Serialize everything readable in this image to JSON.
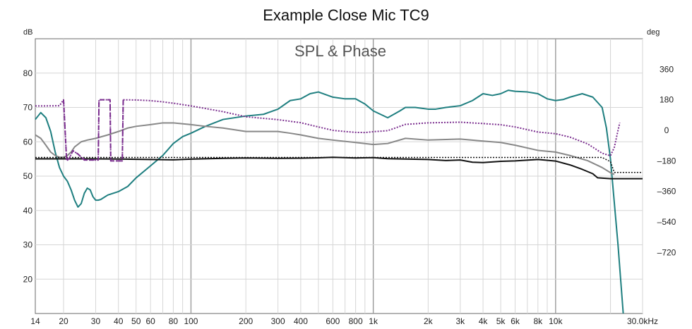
{
  "chart_data": {
    "type": "line",
    "title": "Example Close Mic TC9",
    "subtitle": "SPL & Phase",
    "y_left_unit": "dB",
    "y_right_unit": "deg",
    "x_scale": "log",
    "xlim": [
      14,
      30000
    ],
    "ylim_left": [
      10,
      90
    ],
    "ylim_right": [
      -1080,
      540
    ],
    "x_ticks": [
      {
        "v": 14,
        "label": "14"
      },
      {
        "v": 20,
        "label": "20"
      },
      {
        "v": 30,
        "label": "30"
      },
      {
        "v": 40,
        "label": "40"
      },
      {
        "v": 50,
        "label": "50"
      },
      {
        "v": 60,
        "label": "60"
      },
      {
        "v": 80,
        "label": "80"
      },
      {
        "v": 100,
        "label": "100"
      },
      {
        "v": 200,
        "label": "200"
      },
      {
        "v": 300,
        "label": "300"
      },
      {
        "v": 400,
        "label": "400"
      },
      {
        "v": 600,
        "label": "600"
      },
      {
        "v": 800,
        "label": "800"
      },
      {
        "v": 1000,
        "label": "1k"
      },
      {
        "v": 2000,
        "label": "2k"
      },
      {
        "v": 3000,
        "label": "3k"
      },
      {
        "v": 4000,
        "label": "4k"
      },
      {
        "v": 5000,
        "label": "5k"
      },
      {
        "v": 6000,
        "label": "6k"
      },
      {
        "v": 8000,
        "label": "8k"
      },
      {
        "v": 10000,
        "label": "10k"
      },
      {
        "v": 30000,
        "label": "30.0kHz"
      }
    ],
    "y_left_ticks": [
      {
        "v": 80,
        "label": "80"
      },
      {
        "v": 70,
        "label": "70"
      },
      {
        "v": 60,
        "label": "60"
      },
      {
        "v": 50,
        "label": "50"
      },
      {
        "v": 40,
        "label": "40"
      },
      {
        "v": 30,
        "label": "30"
      },
      {
        "v": 20,
        "label": "20"
      }
    ],
    "y_right_ticks": [
      {
        "v": 360,
        "label": "360"
      },
      {
        "v": 180,
        "label": "180"
      },
      {
        "v": 0,
        "label": "0"
      },
      {
        "v": -180,
        "label": "–180"
      },
      {
        "v": -360,
        "label": "–360"
      },
      {
        "v": -540,
        "label": "–540"
      },
      {
        "v": -720,
        "label": "–720"
      }
    ],
    "series": [
      {
        "color": "#1f7f80",
        "dash": "",
        "width": 2,
        "axis": "left",
        "points": [
          [
            14,
            66.5
          ],
          [
            15,
            68.5
          ],
          [
            16,
            67
          ],
          [
            17,
            63
          ],
          [
            18,
            57
          ],
          [
            19,
            52.5
          ],
          [
            20,
            50
          ],
          [
            21,
            48.5
          ],
          [
            22,
            46
          ],
          [
            23,
            43
          ],
          [
            24,
            41
          ],
          [
            25,
            42
          ],
          [
            26,
            45
          ],
          [
            27,
            46.5
          ],
          [
            28,
            46
          ],
          [
            29,
            44
          ],
          [
            30,
            43
          ],
          [
            31,
            43
          ],
          [
            32,
            43.2
          ],
          [
            35,
            44.5
          ],
          [
            40,
            45.5
          ],
          [
            45,
            47
          ],
          [
            50,
            49.5
          ],
          [
            60,
            53
          ],
          [
            70,
            56
          ],
          [
            80,
            59.5
          ],
          [
            90,
            61.5
          ],
          [
            100,
            62.5
          ],
          [
            120,
            64.5
          ],
          [
            150,
            66.5
          ],
          [
            200,
            67.5
          ],
          [
            250,
            68
          ],
          [
            300,
            69.5
          ],
          [
            350,
            72
          ],
          [
            400,
            72.5
          ],
          [
            450,
            74
          ],
          [
            500,
            74.5
          ],
          [
            600,
            73
          ],
          [
            700,
            72.5
          ],
          [
            800,
            72.5
          ],
          [
            900,
            71
          ],
          [
            1000,
            69
          ],
          [
            1200,
            67
          ],
          [
            1400,
            69
          ],
          [
            1500,
            70
          ],
          [
            1700,
            70
          ],
          [
            2000,
            69.5
          ],
          [
            2200,
            69.5
          ],
          [
            2500,
            70
          ],
          [
            3000,
            70.5
          ],
          [
            3500,
            72
          ],
          [
            4000,
            74
          ],
          [
            4500,
            73.5
          ],
          [
            5000,
            74
          ],
          [
            5500,
            75
          ],
          [
            6000,
            74.7
          ],
          [
            7000,
            74.5
          ],
          [
            8000,
            74
          ],
          [
            9000,
            72.5
          ],
          [
            10000,
            72
          ],
          [
            11000,
            72.3
          ],
          [
            12000,
            73
          ],
          [
            14000,
            74
          ],
          [
            16000,
            73
          ],
          [
            18000,
            70
          ],
          [
            19000,
            64
          ],
          [
            20000,
            55
          ],
          [
            22000,
            30
          ],
          [
            23500,
            10
          ]
        ]
      },
      {
        "color": "#888888",
        "dash": "",
        "width": 2,
        "axis": "left",
        "points": [
          [
            14,
            62
          ],
          [
            15,
            61
          ],
          [
            16,
            59
          ],
          [
            17,
            57
          ],
          [
            18,
            56
          ],
          [
            19,
            55.5
          ],
          [
            20,
            55.5
          ],
          [
            21,
            56
          ],
          [
            22,
            57
          ],
          [
            23,
            58.5
          ],
          [
            25,
            60
          ],
          [
            27,
            60.5
          ],
          [
            30,
            61
          ],
          [
            35,
            62
          ],
          [
            40,
            63
          ],
          [
            45,
            64
          ],
          [
            50,
            64.5
          ],
          [
            60,
            65
          ],
          [
            70,
            65.5
          ],
          [
            80,
            65.5
          ],
          [
            100,
            65
          ],
          [
            120,
            64.5
          ],
          [
            150,
            64
          ],
          [
            200,
            63
          ],
          [
            250,
            63
          ],
          [
            300,
            63
          ],
          [
            350,
            62.5
          ],
          [
            400,
            62
          ],
          [
            500,
            61
          ],
          [
            600,
            60.5
          ],
          [
            800,
            59.8
          ],
          [
            1000,
            59.2
          ],
          [
            1200,
            59.5
          ],
          [
            1500,
            61
          ],
          [
            2000,
            60.5
          ],
          [
            3000,
            60.8
          ],
          [
            4000,
            60.2
          ],
          [
            5000,
            59.8
          ],
          [
            6000,
            59
          ],
          [
            8000,
            57.5
          ],
          [
            10000,
            57
          ],
          [
            12000,
            56
          ],
          [
            15000,
            54.5
          ],
          [
            18000,
            52.5
          ],
          [
            20000,
            51
          ],
          [
            21000,
            50.5
          ]
        ]
      },
      {
        "color": "#111111",
        "dash": "",
        "width": 2,
        "axis": "right",
        "points": [
          [
            14,
            -168
          ],
          [
            20,
            -168
          ],
          [
            30,
            -168
          ],
          [
            40,
            -169
          ],
          [
            50,
            -171
          ],
          [
            60,
            -172
          ],
          [
            80,
            -174
          ],
          [
            100,
            -170
          ],
          [
            150,
            -165
          ],
          [
            200,
            -163
          ],
          [
            300,
            -165
          ],
          [
            400,
            -164
          ],
          [
            500,
            -162
          ],
          [
            600,
            -159
          ],
          [
            800,
            -163
          ],
          [
            1000,
            -161
          ],
          [
            1200,
            -167
          ],
          [
            1500,
            -169
          ],
          [
            2000,
            -172
          ],
          [
            2500,
            -178
          ],
          [
            3000,
            -175
          ],
          [
            3500,
            -188
          ],
          [
            4000,
            -190
          ],
          [
            5000,
            -183
          ],
          [
            6000,
            -180
          ],
          [
            8000,
            -172
          ],
          [
            10000,
            -181
          ],
          [
            12000,
            -204
          ],
          [
            14000,
            -230
          ],
          [
            16000,
            -256
          ],
          [
            17000,
            -280
          ],
          [
            20000,
            -285
          ],
          [
            25000,
            -285
          ],
          [
            30000,
            -285
          ]
        ]
      },
      {
        "color": "#111111",
        "dash": "2,2",
        "width": 1.5,
        "axis": "right",
        "points": [
          [
            14,
            -160
          ],
          [
            100,
            -160
          ],
          [
            1000,
            -160
          ],
          [
            10000,
            -160
          ],
          [
            18000,
            -160
          ],
          [
            20000,
            -185
          ],
          [
            21000,
            -248
          ],
          [
            25000,
            -248
          ],
          [
            30000,
            -248
          ]
        ]
      },
      {
        "color": "#7b2e8f",
        "dash": "2,2",
        "width": 2,
        "axis": "right",
        "points": [
          [
            14,
            144
          ],
          [
            16,
            144
          ],
          [
            19,
            145
          ],
          [
            20,
            180
          ],
          [
            20.8,
            -180
          ],
          [
            21.5,
            -165
          ],
          [
            22.5,
            -120
          ],
          [
            24,
            -140
          ],
          [
            26,
            -175
          ],
          [
            31,
            -175
          ],
          [
            31.3,
            180
          ],
          [
            36,
            180
          ],
          [
            36.3,
            -180
          ],
          [
            42,
            -180
          ],
          [
            42.5,
            180
          ],
          [
            50,
            179
          ],
          [
            60,
            175
          ],
          [
            70,
            168
          ],
          [
            80,
            160
          ],
          [
            100,
            144
          ],
          [
            150,
            110
          ],
          [
            200,
            80
          ],
          [
            300,
            63
          ],
          [
            400,
            45
          ],
          [
            500,
            20
          ],
          [
            600,
            0
          ],
          [
            700,
            -7
          ],
          [
            800,
            -12
          ],
          [
            900,
            -13
          ],
          [
            1000,
            -8
          ],
          [
            1200,
            -2
          ],
          [
            1500,
            35
          ],
          [
            2000,
            44
          ],
          [
            3000,
            48
          ],
          [
            4000,
            40
          ],
          [
            5000,
            33
          ],
          [
            6000,
            20
          ],
          [
            8000,
            -10
          ],
          [
            10000,
            -20
          ],
          [
            12000,
            -40
          ],
          [
            15000,
            -80
          ],
          [
            18000,
            -135
          ],
          [
            20000,
            -150
          ],
          [
            21000,
            -100
          ],
          [
            22000,
            0
          ],
          [
            22500,
            45
          ]
        ]
      },
      {
        "color": "#7b2e8f",
        "dash": "7,4",
        "width": 2,
        "axis": "right",
        "points": [
          [
            20,
            180
          ],
          [
            20.8,
            -180
          ],
          [
            21.5,
            -165
          ],
          [
            22.5,
            -120
          ],
          [
            24,
            -140
          ],
          [
            26,
            -175
          ],
          [
            31,
            -175
          ],
          [
            31.3,
            180
          ],
          [
            36,
            180
          ],
          [
            36.3,
            -180
          ],
          [
            42,
            -180
          ],
          [
            42.5,
            180
          ]
        ]
      }
    ]
  }
}
